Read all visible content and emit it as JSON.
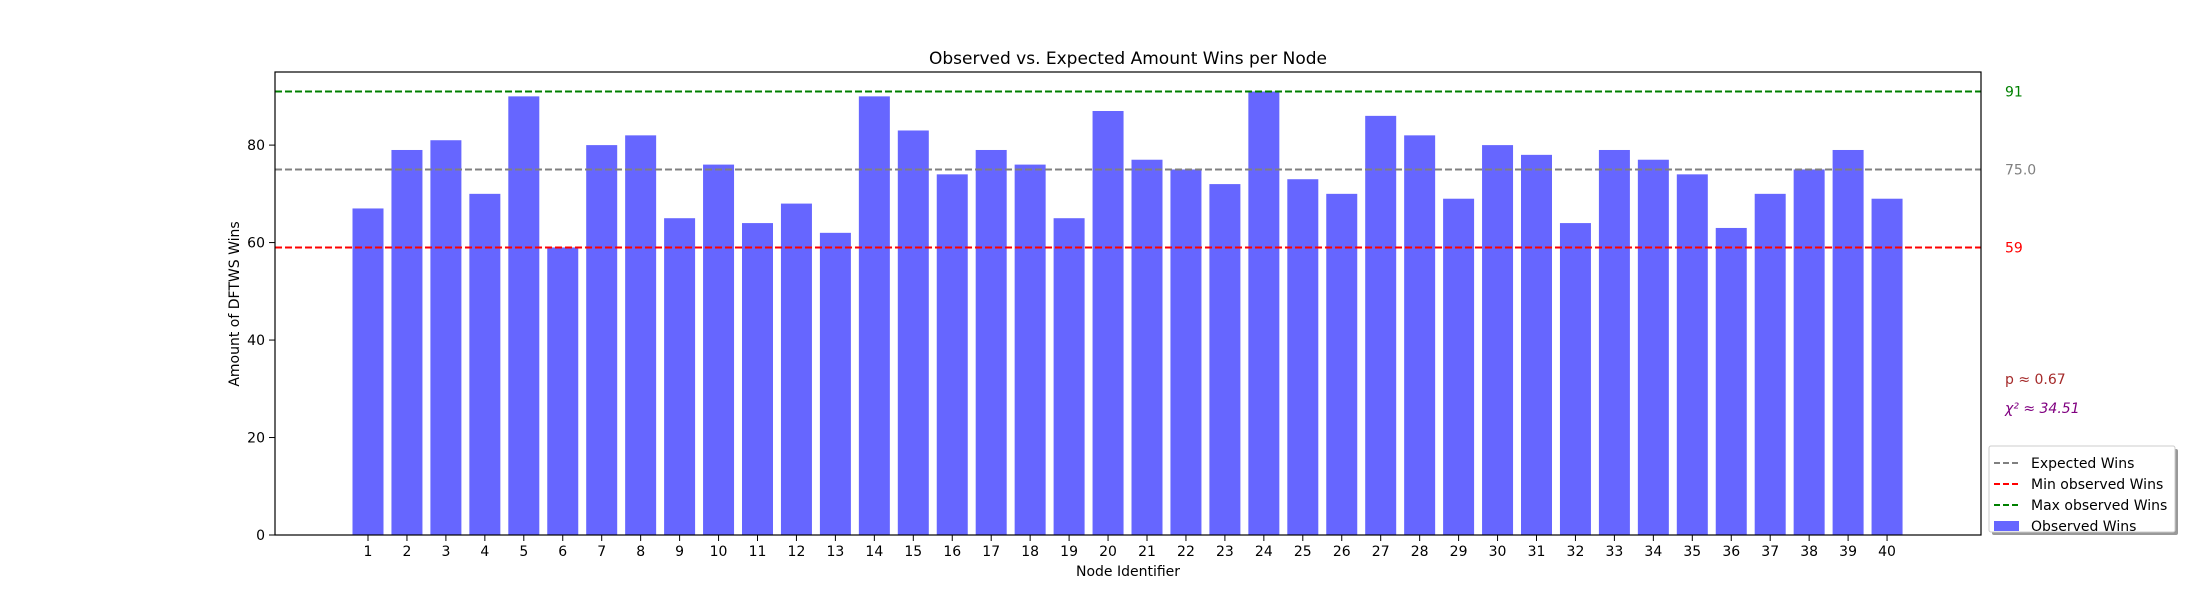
{
  "chart_data": {
    "type": "bar",
    "title": "Observed vs. Expected Amount Wins per Node",
    "xlabel": "Node Identifier",
    "ylabel": "Amount of DFTWS Wins",
    "ylim": [
      0,
      95
    ],
    "yticks": [
      0,
      20,
      40,
      60,
      80
    ],
    "grid": false,
    "categories": [
      "1",
      "2",
      "3",
      "4",
      "5",
      "6",
      "7",
      "8",
      "9",
      "10",
      "11",
      "12",
      "13",
      "14",
      "15",
      "16",
      "17",
      "18",
      "19",
      "20",
      "21",
      "22",
      "23",
      "24",
      "25",
      "26",
      "27",
      "28",
      "29",
      "30",
      "31",
      "32",
      "33",
      "34",
      "35",
      "36",
      "37",
      "38",
      "39",
      "40"
    ],
    "series": [
      {
        "name": "Observed Wins",
        "color": "#6666ff",
        "values": [
          67,
          79,
          81,
          70,
          90,
          59,
          80,
          82,
          65,
          76,
          64,
          68,
          62,
          90,
          83,
          74,
          79,
          76,
          65,
          87,
          77,
          75,
          72,
          91,
          73,
          70,
          86,
          82,
          69,
          80,
          78,
          64,
          79,
          77,
          74,
          63,
          70,
          75,
          79,
          69
        ]
      }
    ],
    "reference_lines": [
      {
        "name": "Expected Wins",
        "value": 75.0,
        "label": "75.0",
        "color": "#808080"
      },
      {
        "name": "Min observed Wins",
        "value": 59,
        "label": "59",
        "color": "#ff0000"
      },
      {
        "name": "Max observed Wins",
        "value": 91,
        "label": "91",
        "color": "#008000"
      }
    ],
    "annotations": [
      {
        "text": "p ≈ 0.67",
        "color": "#a52a2a"
      },
      {
        "text": "χ² ≈ 34.51",
        "color": "#800080"
      }
    ],
    "legend": {
      "position": "bottom-right",
      "entries": [
        {
          "label": "Expected Wins",
          "kind": "dashed",
          "color": "#808080"
        },
        {
          "label": "Min observed Wins",
          "kind": "dashed",
          "color": "#ff0000"
        },
        {
          "label": "Max observed Wins",
          "kind": "dashed",
          "color": "#008000"
        },
        {
          "label": "Observed Wins",
          "kind": "patch",
          "color": "#6666ff"
        }
      ]
    }
  }
}
